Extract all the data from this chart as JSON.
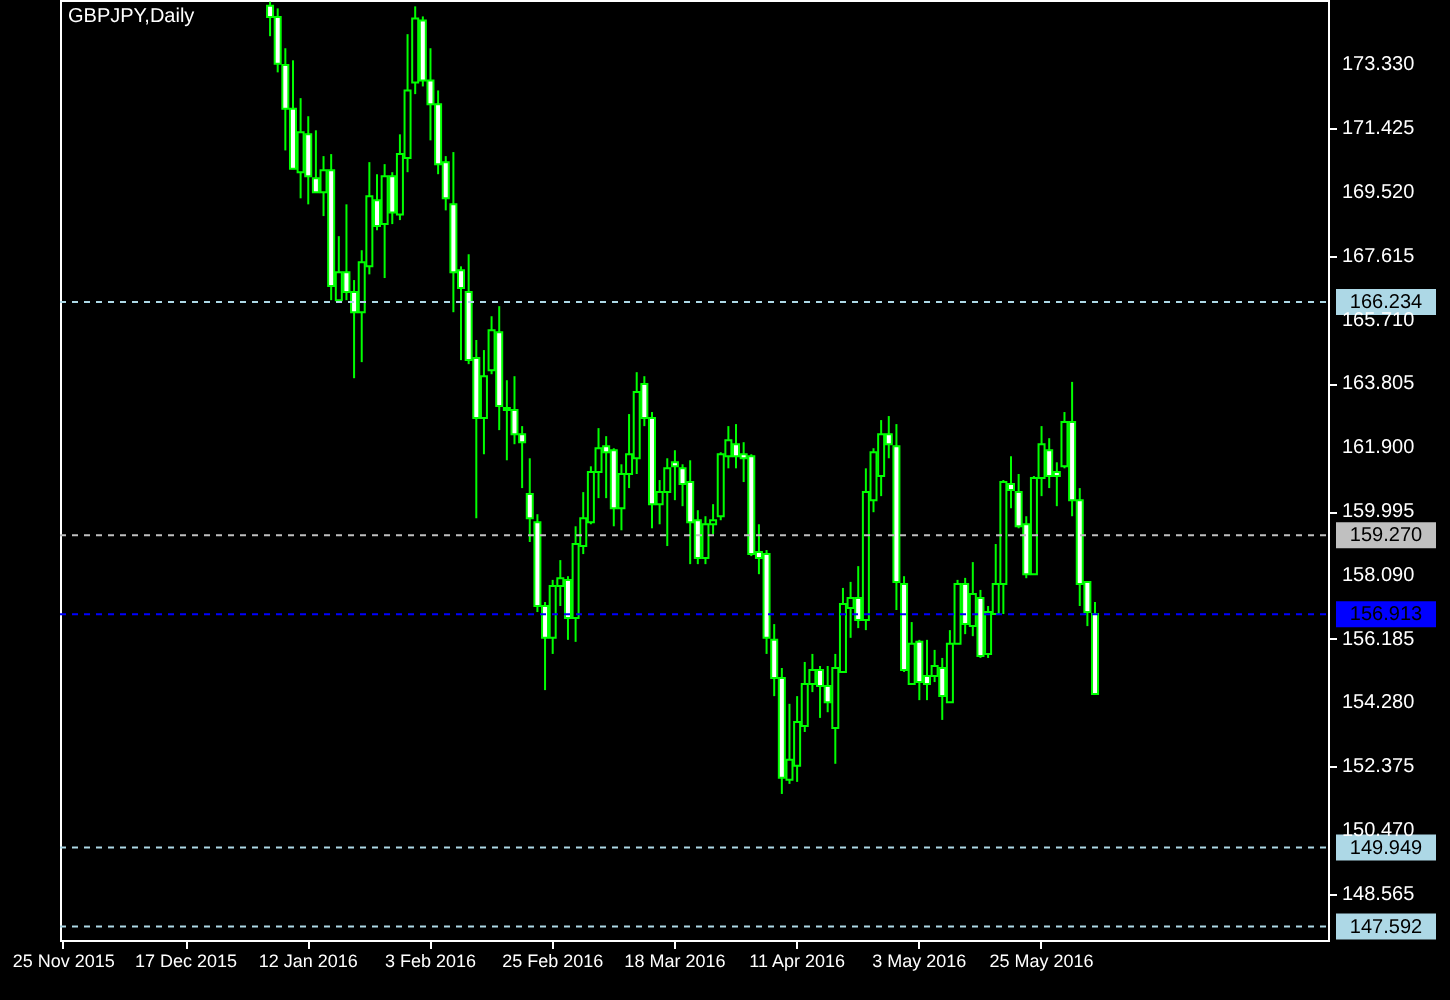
{
  "chart_data": {
    "type": "candlestick",
    "title": "GBPJPY,Daily",
    "categories": [
      "25 Nov 2015",
      null,
      null,
      null,
      null,
      null,
      null,
      null,
      null,
      null,
      null,
      null,
      null,
      null,
      null,
      null,
      "17 Dec 2015",
      null,
      null,
      null,
      null,
      null,
      null,
      null,
      null,
      null,
      null,
      null,
      null,
      null,
      null,
      null,
      "12 Jan 2016",
      null,
      null,
      null,
      null,
      null,
      null,
      null,
      null,
      null,
      null,
      null,
      null,
      null,
      null,
      null,
      "3 Feb 2016",
      null,
      null,
      null,
      null,
      null,
      null,
      null,
      null,
      null,
      null,
      null,
      null,
      null,
      null,
      null,
      "25 Feb 2016",
      null,
      null,
      null,
      null,
      null,
      null,
      null,
      null,
      null,
      null,
      null,
      null,
      null,
      null,
      null,
      "18 Mar 2016",
      null,
      null,
      null,
      null,
      null,
      null,
      null,
      null,
      null,
      null,
      null,
      null,
      null,
      null,
      null,
      "11 Apr 2016",
      null,
      null,
      null,
      null,
      null,
      null,
      null,
      null,
      null,
      null,
      null,
      null,
      null,
      null,
      null,
      "3 May 2016",
      null,
      null,
      null,
      null,
      null,
      null,
      null,
      null,
      null,
      null,
      null,
      null,
      null,
      null,
      null,
      "25 May 2016",
      null,
      null,
      null,
      null,
      null,
      null,
      null,
      null,
      null,
      null,
      null,
      null,
      null,
      null,
      null,
      null,
      null,
      null,
      null,
      null,
      null,
      null,
      null,
      null,
      null,
      null,
      null,
      null,
      null,
      null,
      null,
      null,
      null,
      null,
      null,
      null,
      null
    ],
    "series": [
      {
        "color": "#00ff00",
        "colors": [
          null,
          null,
          null,
          null,
          null,
          null,
          null,
          null,
          null,
          null,
          null,
          null,
          null,
          null,
          null,
          null,
          null,
          null,
          null,
          null,
          null,
          null,
          null,
          null,
          null,
          null,
          null,
          "#ffffff",
          "#ffffff",
          "#ffffff",
          "#ffffff",
          "#000000",
          "#ffffff",
          "#ffffff",
          "#000000",
          "#ffffff",
          "#000000",
          "#ffffff",
          "#ffffff",
          "#000000",
          "#000000",
          "#ffffff",
          "#000000",
          "#ffffff",
          "#000000",
          "#000000",
          "#000000",
          "#ffffff",
          "#ffffff",
          "#ffffff",
          "#ffffff",
          "#ffffff",
          "#ffffff",
          "#ffffff",
          "#ffffff",
          "#000000",
          "#000000",
          "#ffffff",
          "#ffffff",
          "#ffffff",
          "#ffffff",
          "#ffffff",
          "#ffffff",
          "#ffffff",
          "#000000",
          "#000000",
          "#ffffff",
          "#000000",
          "#000000",
          "#000000",
          "#000000",
          "#ffffff",
          "#ffffff",
          "#000000",
          "#000000",
          "#000000",
          "#ffffff",
          "#ffffff",
          "#000000",
          "#000000",
          "#ffffff",
          "#ffffff",
          "#ffffff",
          "#ffffff",
          "#000000",
          "#000000",
          "#000000",
          "#000000",
          "#ffffff",
          "#ffffff",
          "#ffffff",
          "#ffffff",
          "#ffffff",
          "#ffffff",
          "#ffffff",
          "#000000",
          "#000000",
          "#000000",
          "#000000",
          "#ffffff",
          "#ffffff",
          "#000000",
          "#000000",
          "#000000",
          "#ffffff",
          "#000000",
          "#000000",
          "#000000",
          "#ffffff",
          "#ffffff",
          "#ffffff",
          "#000000",
          "#ffffff",
          "#ffffff",
          "#000000",
          "#ffffff",
          "#000000",
          "#000000",
          "#ffffff",
          "#000000",
          "#ffffff",
          "#000000",
          "#000000",
          "#000000",
          "#ffffff",
          "#ffffff",
          "#ffffff",
          "#000000",
          "#000000",
          "#ffffff",
          "#ffffff",
          "#000000",
          "#ffffff",
          "#ffffff",
          "#ffffff",
          "#ffffff",
          null,
          null,
          null,
          null,
          null,
          null,
          null,
          null,
          null,
          null,
          null,
          null,
          null,
          null,
          null,
          null,
          null,
          null,
          null,
          null,
          null,
          null,
          null,
          null,
          null,
          null,
          null,
          null,
          null,
          null
        ],
        "ohlc": [
          null,
          null,
          null,
          null,
          null,
          null,
          null,
          null,
          null,
          null,
          null,
          null,
          null,
          null,
          null,
          null,
          null,
          null,
          null,
          null,
          null,
          null,
          null,
          null,
          null,
          null,
          null,
          [
            175.08,
            175.2,
            174.17,
            174.74
          ],
          [
            174.74,
            175.0,
            173.09,
            173.35
          ],
          [
            173.31,
            173.81,
            170.76,
            172.0
          ],
          [
            172.0,
            173.45,
            170.21,
            170.21
          ],
          [
            170.11,
            172.32,
            169.33,
            171.3
          ],
          [
            171.24,
            171.78,
            169.15,
            169.99
          ],
          [
            169.93,
            171.36,
            169.51,
            169.51
          ],
          [
            169.51,
            170.59,
            168.8,
            170.17
          ],
          [
            170.17,
            170.65,
            166.29,
            166.71
          ],
          [
            166.29,
            168.2,
            166.29,
            167.12
          ],
          [
            167.12,
            169.15,
            166.29,
            166.53
          ],
          [
            166.53,
            166.89,
            163.96,
            165.93
          ],
          [
            165.93,
            167.78,
            164.44,
            167.42
          ],
          [
            167.3,
            170.41,
            167.06,
            169.39
          ],
          [
            169.27,
            170.05,
            168.38,
            168.5
          ],
          [
            168.56,
            170.35,
            166.95,
            169.99
          ],
          [
            169.99,
            170.11,
            168.56,
            168.91
          ],
          [
            168.85,
            171.24,
            168.68,
            170.65
          ],
          [
            170.53,
            174.23,
            170.11,
            172.55
          ],
          [
            172.79,
            175.06,
            172.44,
            174.7
          ],
          [
            174.64,
            174.76,
            172.67,
            172.85
          ],
          [
            172.85,
            173.81,
            171.06,
            172.14
          ],
          [
            172.14,
            172.55,
            170.05,
            170.35
          ],
          [
            170.41,
            170.59,
            168.97,
            169.33
          ],
          [
            169.15,
            170.71,
            165.93,
            167.12
          ],
          [
            167.18,
            167.3,
            164.5,
            166.65
          ],
          [
            166.53,
            167.66,
            164.38,
            164.5
          ],
          [
            164.56,
            165.1,
            159.78,
            162.77
          ],
          [
            162.77,
            164.8,
            161.69,
            164.02
          ],
          [
            164.2,
            165.81,
            164.08,
            165.39
          ],
          [
            165.33,
            166.11,
            162.41,
            163.13
          ],
          [
            163.07,
            163.9,
            161.51,
            163.01
          ],
          [
            163.01,
            164.02,
            161.99,
            162.29
          ],
          [
            162.29,
            162.53,
            160.68,
            162.05
          ],
          [
            160.5,
            161.57,
            159.07,
            159.78
          ],
          [
            159.66,
            159.9,
            156.98,
            157.16
          ],
          [
            157.16,
            157.28,
            154.65,
            156.21
          ],
          [
            156.21,
            157.94,
            155.73,
            157.76
          ],
          [
            157.76,
            158.53,
            157.16,
            157.99
          ],
          [
            157.94,
            158.05,
            156.15,
            156.8
          ],
          [
            156.8,
            159.54,
            156.09,
            159.01
          ],
          [
            158.95,
            160.56,
            158.71,
            159.78
          ],
          [
            159.66,
            161.33,
            159.6,
            161.16
          ],
          [
            161.16,
            162.47,
            160.38,
            161.87
          ],
          [
            161.93,
            162.23,
            160.38,
            161.75
          ],
          [
            161.81,
            161.87,
            159.54,
            160.08
          ],
          [
            160.08,
            161.39,
            159.42,
            161.1
          ],
          [
            161.1,
            162.89,
            160.68,
            161.69
          ],
          [
            161.57,
            164.14,
            161.1,
            163.55
          ],
          [
            163.79,
            164.02,
            162.53,
            162.77
          ],
          [
            162.77,
            162.95,
            159.48,
            160.2
          ],
          [
            160.2,
            160.92,
            159.6,
            160.56
          ],
          [
            160.56,
            161.57,
            158.95,
            161.27
          ],
          [
            161.45,
            161.81,
            160.32,
            161.33
          ],
          [
            161.27,
            161.39,
            160.14,
            160.8
          ],
          [
            160.86,
            161.51,
            158.41,
            159.66
          ],
          [
            159.72,
            160.02,
            158.41,
            158.59
          ],
          [
            158.59,
            159.84,
            158.41,
            159.6
          ],
          [
            159.6,
            160.2,
            159.3,
            159.72
          ],
          [
            159.84,
            161.75,
            159.72,
            161.69
          ],
          [
            161.63,
            162.53,
            161.27,
            162.11
          ],
          [
            161.99,
            162.59,
            161.27,
            161.63
          ],
          [
            161.69,
            162.05,
            160.86,
            161.57
          ],
          [
            161.63,
            161.69,
            158.65,
            158.71
          ],
          [
            158.77,
            159.6,
            158.11,
            158.59
          ],
          [
            158.71,
            158.83,
            155.73,
            156.21
          ],
          [
            156.15,
            156.62,
            154.47,
            155.01
          ],
          [
            155.01,
            155.31,
            151.55,
            152.03
          ],
          [
            151.97,
            154.24,
            151.85,
            152.57
          ],
          [
            152.39,
            154.47,
            151.91,
            153.7
          ],
          [
            153.58,
            155.49,
            153.4,
            154.83
          ],
          [
            154.83,
            155.73,
            154.59,
            155.25
          ],
          [
            155.25,
            155.37,
            153.82,
            154.77
          ],
          [
            154.77,
            155.37,
            153.99,
            154.29
          ],
          [
            153.52,
            155.73,
            152.45,
            155.31
          ],
          [
            155.19,
            157.7,
            155.19,
            157.22
          ],
          [
            157.1,
            157.88,
            156.21,
            157.4
          ],
          [
            157.4,
            158.35,
            156.5,
            156.74
          ],
          [
            156.74,
            161.27,
            156.44,
            160.56
          ],
          [
            160.32,
            161.87,
            159.96,
            161.75
          ],
          [
            161.04,
            162.71,
            160.44,
            162.29
          ],
          [
            162.29,
            162.83,
            161.57,
            161.99
          ],
          [
            161.93,
            162.59,
            157.04,
            157.88
          ],
          [
            157.82,
            158.05,
            155.19,
            155.25
          ],
          [
            154.83,
            156.68,
            154.83,
            156.03
          ],
          [
            156.09,
            156.15,
            154.35,
            154.89
          ],
          [
            155.07,
            156.15,
            154.35,
            154.83
          ],
          [
            155.07,
            155.85,
            154.89,
            155.37
          ],
          [
            155.31,
            155.61,
            153.76,
            154.47
          ],
          [
            154.29,
            156.44,
            154.29,
            156.03
          ],
          [
            156.03,
            157.94,
            156.03,
            157.82
          ],
          [
            157.82,
            158.0,
            156.32,
            156.62
          ],
          [
            156.56,
            158.47,
            156.26,
            157.52
          ],
          [
            157.4,
            157.64,
            155.61,
            155.67
          ],
          [
            155.73,
            157.16,
            155.61,
            156.98
          ],
          [
            156.92,
            159.01,
            156.92,
            157.82
          ],
          [
            157.82,
            160.92,
            156.92,
            160.86
          ],
          [
            160.8,
            161.63,
            160.08,
            160.62
          ],
          [
            160.56,
            161.1,
            159.48,
            159.54
          ],
          [
            159.6,
            159.84,
            157.99,
            158.11
          ],
          [
            158.11,
            161.04,
            158.11,
            160.98
          ],
          [
            160.98,
            162.53,
            160.44,
            161.99
          ],
          [
            161.81,
            162.17,
            160.68,
            161.04
          ],
          [
            161.16,
            161.45,
            160.14,
            161.04
          ],
          [
            161.33,
            162.95,
            161.27,
            162.65
          ],
          [
            162.65,
            163.85,
            159.84,
            160.32
          ],
          [
            160.32,
            160.68,
            157.16,
            157.82
          ],
          [
            157.88,
            157.88,
            156.56,
            156.98
          ],
          [
            156.92,
            157.28,
            154.53,
            154.53
          ],
          null,
          null,
          null,
          null,
          null,
          null,
          null,
          null,
          null,
          null,
          null,
          null,
          null,
          null,
          null,
          null,
          null,
          null,
          null,
          null,
          null,
          null,
          null,
          null,
          null,
          null,
          null,
          null,
          null,
          null
        ]
      }
    ],
    "ylim": [
      147.19,
      175.25
    ],
    "yticks": [
      {
        "value": 148.565,
        "label": "148.565"
      },
      {
        "value": 150.47,
        "label": "150.470"
      },
      {
        "value": 152.375,
        "label": "152.375"
      },
      {
        "value": 154.28,
        "label": "154.280"
      },
      {
        "value": 156.185,
        "label": "156.185"
      },
      {
        "value": 158.09,
        "label": "158.090"
      },
      {
        "value": 159.995,
        "label": "159.995"
      },
      {
        "value": 161.9,
        "label": "161.900"
      },
      {
        "value": 163.805,
        "label": "163.805"
      },
      {
        "value": 165.71,
        "label": "165.710"
      },
      {
        "value": 167.615,
        "label": "167.615"
      },
      {
        "value": 169.52,
        "label": "169.520"
      },
      {
        "value": 171.425,
        "label": "171.425"
      },
      {
        "value": 173.33,
        "label": "173.330"
      }
    ],
    "ref_lines": [
      {
        "axis": "y",
        "value": 166.234,
        "label": "166.234",
        "color": "#add8e6",
        "line_style": "dashed"
      },
      {
        "axis": "y",
        "value": 159.27,
        "label": "159.270",
        "color": "#c0c0c0",
        "line_style": "dashed"
      },
      {
        "axis": "y",
        "value": 156.913,
        "label": "156.913",
        "color": "#0000ff",
        "line_style": "dashed"
      },
      {
        "axis": "y",
        "value": 149.949,
        "label": "149.949",
        "color": "#add8e6",
        "line_style": "dashed"
      },
      {
        "axis": "y",
        "value": 147.592,
        "label": "147.592",
        "color": "#add8e6",
        "line_style": "dashed"
      }
    ],
    "grid": false
  }
}
